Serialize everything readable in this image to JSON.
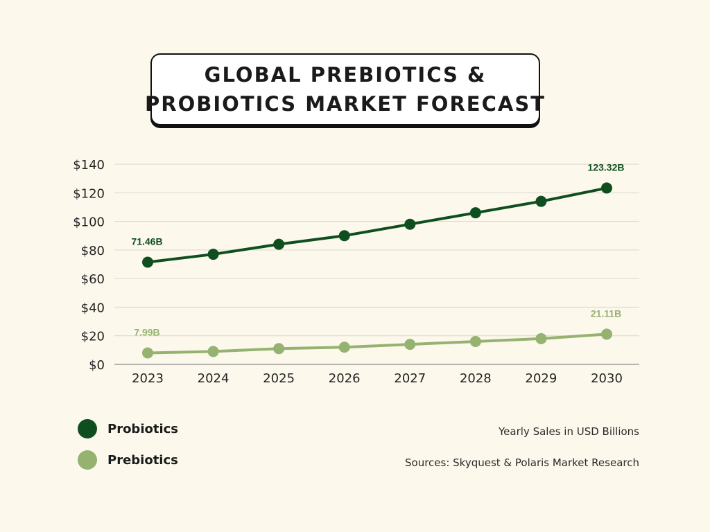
{
  "title": {
    "line1": "GLOBAL PREBIOTICS &",
    "line2": "PROBIOTICS MARKET FORECAST"
  },
  "colors": {
    "background": "#fcf8ec",
    "probiotics": "#0f4f1f",
    "prebiotics": "#95b270",
    "grid": "#d9d6cc",
    "axis": "#8a8a8a"
  },
  "chart_data": {
    "type": "line",
    "x": [
      "2023",
      "2024",
      "2025",
      "2026",
      "2027",
      "2028",
      "2029",
      "2030"
    ],
    "series": [
      {
        "name": "Probiotics",
        "values": [
          71.46,
          77,
          84,
          90,
          98,
          106,
          114,
          123.32
        ],
        "labels": [
          {
            "index": 0,
            "text": "71.46B"
          },
          {
            "index": 7,
            "text": "123.32B"
          }
        ]
      },
      {
        "name": "Prebiotics",
        "values": [
          7.99,
          9,
          11,
          12,
          14,
          16,
          18,
          21.11
        ],
        "labels": [
          {
            "index": 0,
            "text": "7.99B"
          },
          {
            "index": 7,
            "text": "21.11B"
          }
        ]
      }
    ],
    "yticks": [
      "$0",
      "$20",
      "$40",
      "$60",
      "$80",
      "$100",
      "$120",
      "$140"
    ],
    "ylim": [
      0,
      140
    ],
    "grid": true
  },
  "legend": {
    "items": [
      {
        "label": "Probiotics",
        "color": "#0f4f1f"
      },
      {
        "label": "Prebiotics",
        "color": "#95b270"
      }
    ]
  },
  "notes": {
    "units": "Yearly Sales in USD Billions",
    "sources": "Sources: Skyquest & Polaris Market Research"
  }
}
